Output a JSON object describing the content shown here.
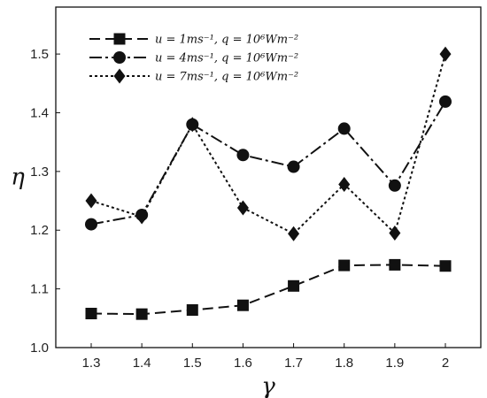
{
  "chart_data": {
    "type": "line",
    "title": "",
    "xlabel": "γ",
    "ylabel": "η",
    "x": [
      1.3,
      1.4,
      1.5,
      1.6,
      1.7,
      1.8,
      1.9,
      2.0
    ],
    "x_tick_labels": [
      "1.3",
      "1.4",
      "1.5",
      "1.6",
      "1.7",
      "1.8",
      "1.9",
      "2"
    ],
    "xlim": [
      1.23,
      2.07
    ],
    "ylim": [
      1.0,
      1.58
    ],
    "y_ticks": [
      1.0,
      1.1,
      1.2,
      1.3,
      1.4,
      1.5
    ],
    "y_tick_labels": [
      "1.0",
      "1.1",
      "1.2",
      "1.3",
      "1.4",
      "1.5"
    ],
    "grid": false,
    "legend_position": "top-left",
    "series": [
      {
        "name": "u = 1ms⁻¹, q = 10⁶Wm⁻²",
        "marker": "square",
        "line_style": "dashed",
        "values": [
          1.058,
          1.057,
          1.064,
          1.072,
          1.105,
          1.14,
          1.141,
          1.139
        ]
      },
      {
        "name": "u = 4ms⁻¹, q = 10⁶Wm⁻²",
        "marker": "circle",
        "line_style": "dash-dot",
        "values": [
          1.21,
          1.226,
          1.38,
          1.328,
          1.308,
          1.373,
          1.276,
          1.419
        ]
      },
      {
        "name": "u = 7ms⁻¹, q = 10⁶Wm⁻²",
        "marker": "diamond",
        "line_style": "dotted",
        "values": [
          1.25,
          1.223,
          1.38,
          1.238,
          1.194,
          1.278,
          1.195,
          1.5
        ]
      }
    ],
    "colors": {
      "line": "#111111",
      "frame": "#111111"
    }
  }
}
